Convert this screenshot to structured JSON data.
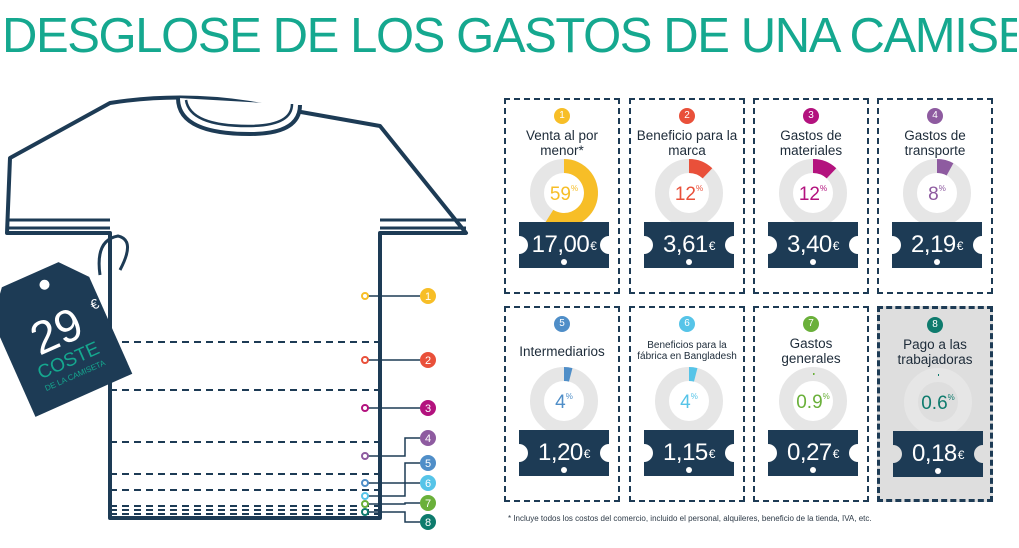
{
  "title": "DESGLOSE DE LOS GASTOS DE UNA CAMISETA",
  "price_tag": {
    "amount": "29",
    "currency": "€",
    "line1": "COSTE",
    "line2": "DE LA CAMISETA"
  },
  "footnote": "* Incluye todos los costos del comercio, incluido el personal, alquileres, beneficio de la tienda, IVA, etc.",
  "colors": {
    "title": "#15a88f",
    "navy": "#1d3b55",
    "ring": "#e6e6e6",
    "highlight_bg": "#dedede"
  },
  "shirt_markers": [
    "1",
    "2",
    "3",
    "4",
    "5",
    "6",
    "7",
    "8"
  ],
  "chart_data": {
    "type": "pie",
    "categories": [
      "Venta al por menor*",
      "Beneficio para la marca",
      "Gastos de materiales",
      "Gastos de transporte",
      "Intermediarios",
      "Beneficios para la fábrica en Bangladesh",
      "Gastos generales",
      "Pago a las trabajadoras"
    ],
    "percent": [
      59,
      12,
      12,
      8,
      4,
      4,
      0.9,
      0.6
    ],
    "amount_eur": [
      17.0,
      3.61,
      3.4,
      2.19,
      1.2,
      1.15,
      0.27,
      0.18
    ],
    "total_eur": 29
  },
  "items": [
    {
      "n": "1",
      "label": "Venta al por menor*",
      "pct": "59",
      "pct_unit": "%",
      "share": 59,
      "price": "17,00",
      "cur": "€",
      "color": "#f7be27",
      "small": false,
      "highlight": false
    },
    {
      "n": "2",
      "label": "Beneficio para la marca",
      "pct": "12",
      "pct_unit": "%",
      "share": 12,
      "price": "3,61",
      "cur": "€",
      "color": "#e9503a",
      "small": false,
      "highlight": false
    },
    {
      "n": "3",
      "label": "Gastos de materiales",
      "pct": "12",
      "pct_unit": "%",
      "share": 12,
      "price": "3,40",
      "cur": "€",
      "color": "#b3127e",
      "small": false,
      "highlight": false
    },
    {
      "n": "4",
      "label": "Gastos de transporte",
      "pct": "8",
      "pct_unit": "%",
      "share": 8,
      "price": "2,19",
      "cur": "€",
      "color": "#8e5ba0",
      "small": false,
      "highlight": false
    },
    {
      "n": "5",
      "label": "Intermediarios",
      "pct": "4",
      "pct_unit": "%",
      "share": 4,
      "price": "1,20",
      "cur": "€",
      "color": "#4f8ec8",
      "small": false,
      "highlight": false
    },
    {
      "n": "6",
      "label": "Beneficios para la fábrica en Bangladesh",
      "pct": "4",
      "pct_unit": "%",
      "share": 4,
      "price": "1,15",
      "cur": "€",
      "color": "#56c4e8",
      "small": true,
      "highlight": false
    },
    {
      "n": "7",
      "label": "Gastos generales",
      "pct": "0.9",
      "pct_unit": "%",
      "share": 0.9,
      "price": "0,27",
      "cur": "€",
      "color": "#6ab03a",
      "small": false,
      "highlight": false
    },
    {
      "n": "8",
      "label": "Pago a las trabajadoras",
      "pct": "0.6",
      "pct_unit": "%",
      "share": 0.6,
      "price": "0,18",
      "cur": "€",
      "color": "#0e7b6d",
      "small": false,
      "highlight": true
    }
  ]
}
